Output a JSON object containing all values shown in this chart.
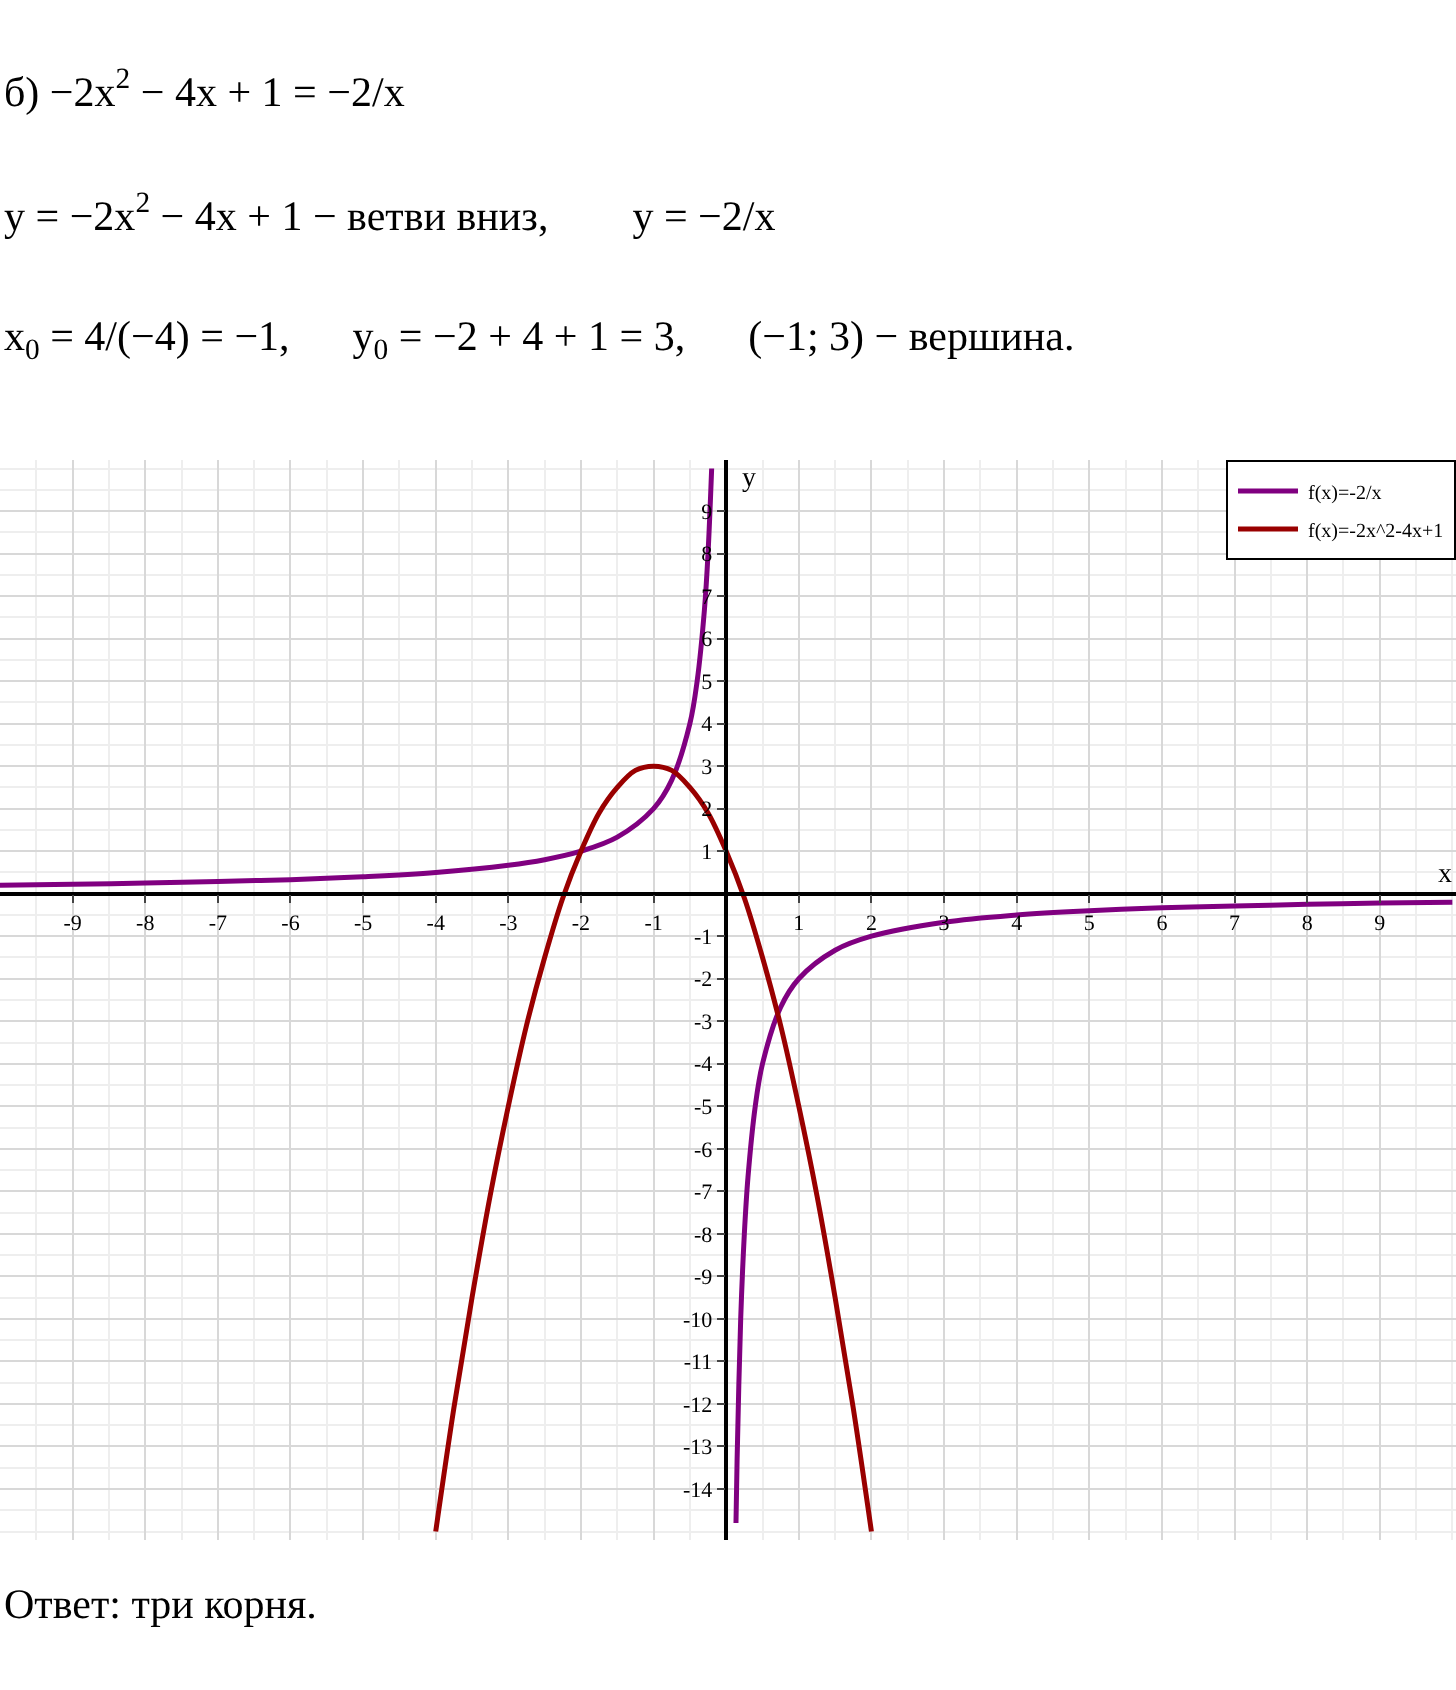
{
  "chart_data": {
    "type": "line",
    "xlabel": "x",
    "ylabel": "y",
    "annotations": [
      "б) −2x$^{2}$ − 4x + 1 = −2/x",
      "y = −2x$^{2}$ − 4x + 1 − ветви вниз,        y = −2/x",
      "x$_{0}$ = 4/(−4) = −1,      y$_{0}$ = −2 + 4 + 1 = 3,      (−1; 3) − вершина.",
      "Ответ: три корня."
    ],
    "series": [
      {
        "name": "f(x)=-2/x",
        "color": "#800080",
        "x": [
          -10,
          -9,
          -8,
          -7,
          -6,
          -5,
          -4,
          -3,
          -2.5,
          -2,
          -1.5,
          -1,
          -0.75,
          -0.5,
          -0.4,
          -0.3,
          -0.25,
          -0.2,
          0,
          0.135,
          0.15,
          0.2,
          0.25,
          0.3,
          0.4,
          0.5,
          0.75,
          1,
          1.5,
          2,
          3,
          4,
          5,
          6,
          7,
          8,
          9,
          10
        ],
        "values": [
          0.2,
          0.22,
          0.25,
          0.29,
          0.33,
          0.4,
          0.5,
          0.67,
          0.8,
          1,
          1.33,
          2,
          2.67,
          4,
          5,
          6.67,
          8,
          10,
          null,
          -14.8,
          -13.33,
          -10,
          -8,
          -6.67,
          -5,
          -4,
          -2.67,
          -2,
          -1.33,
          -1,
          -0.67,
          -0.5,
          -0.4,
          -0.33,
          -0.29,
          -0.25,
          -0.22,
          -0.2
        ]
      },
      {
        "name": "f(x)=-2x^2-4x+1",
        "color": "#990000",
        "x": [
          -4,
          -3.75,
          -3.5,
          -3.25,
          -3,
          -2.75,
          -2.5,
          -2.25,
          -2,
          -1.75,
          -1.5,
          -1.25,
          -1,
          -0.75,
          -0.5,
          -0.25,
          0,
          0.25,
          0.5,
          0.75,
          1,
          1.25,
          1.5,
          1.75,
          2
        ],
        "values": [
          -15,
          -12.1,
          -9.5,
          -7.1,
          -5,
          -3.1,
          -1.5,
          -0.1,
          1,
          1.9,
          2.5,
          2.9,
          3,
          2.9,
          2.5,
          1.9,
          1,
          -0.1,
          -1.5,
          -3.1,
          -5,
          -7.1,
          -9.5,
          -12.1,
          -15
        ]
      }
    ],
    "xlim": [
      -10,
      10.05
    ],
    "ylim": [
      -15.2,
      10.2
    ],
    "xticks": [
      -9,
      -8,
      -7,
      -6,
      -5,
      -4,
      -3,
      -2,
      -1,
      1,
      2,
      3,
      4,
      5,
      6,
      7,
      8,
      9
    ],
    "yticks": [
      -14,
      -13,
      -12,
      -11,
      -10,
      -9,
      -8,
      -7,
      -6,
      -5,
      -4,
      -3,
      -2,
      -1,
      1,
      2,
      3,
      4,
      5,
      6,
      7,
      8,
      9
    ],
    "grid": true,
    "legend": "top right",
    "marker": "none",
    "line_style": "solid"
  }
}
